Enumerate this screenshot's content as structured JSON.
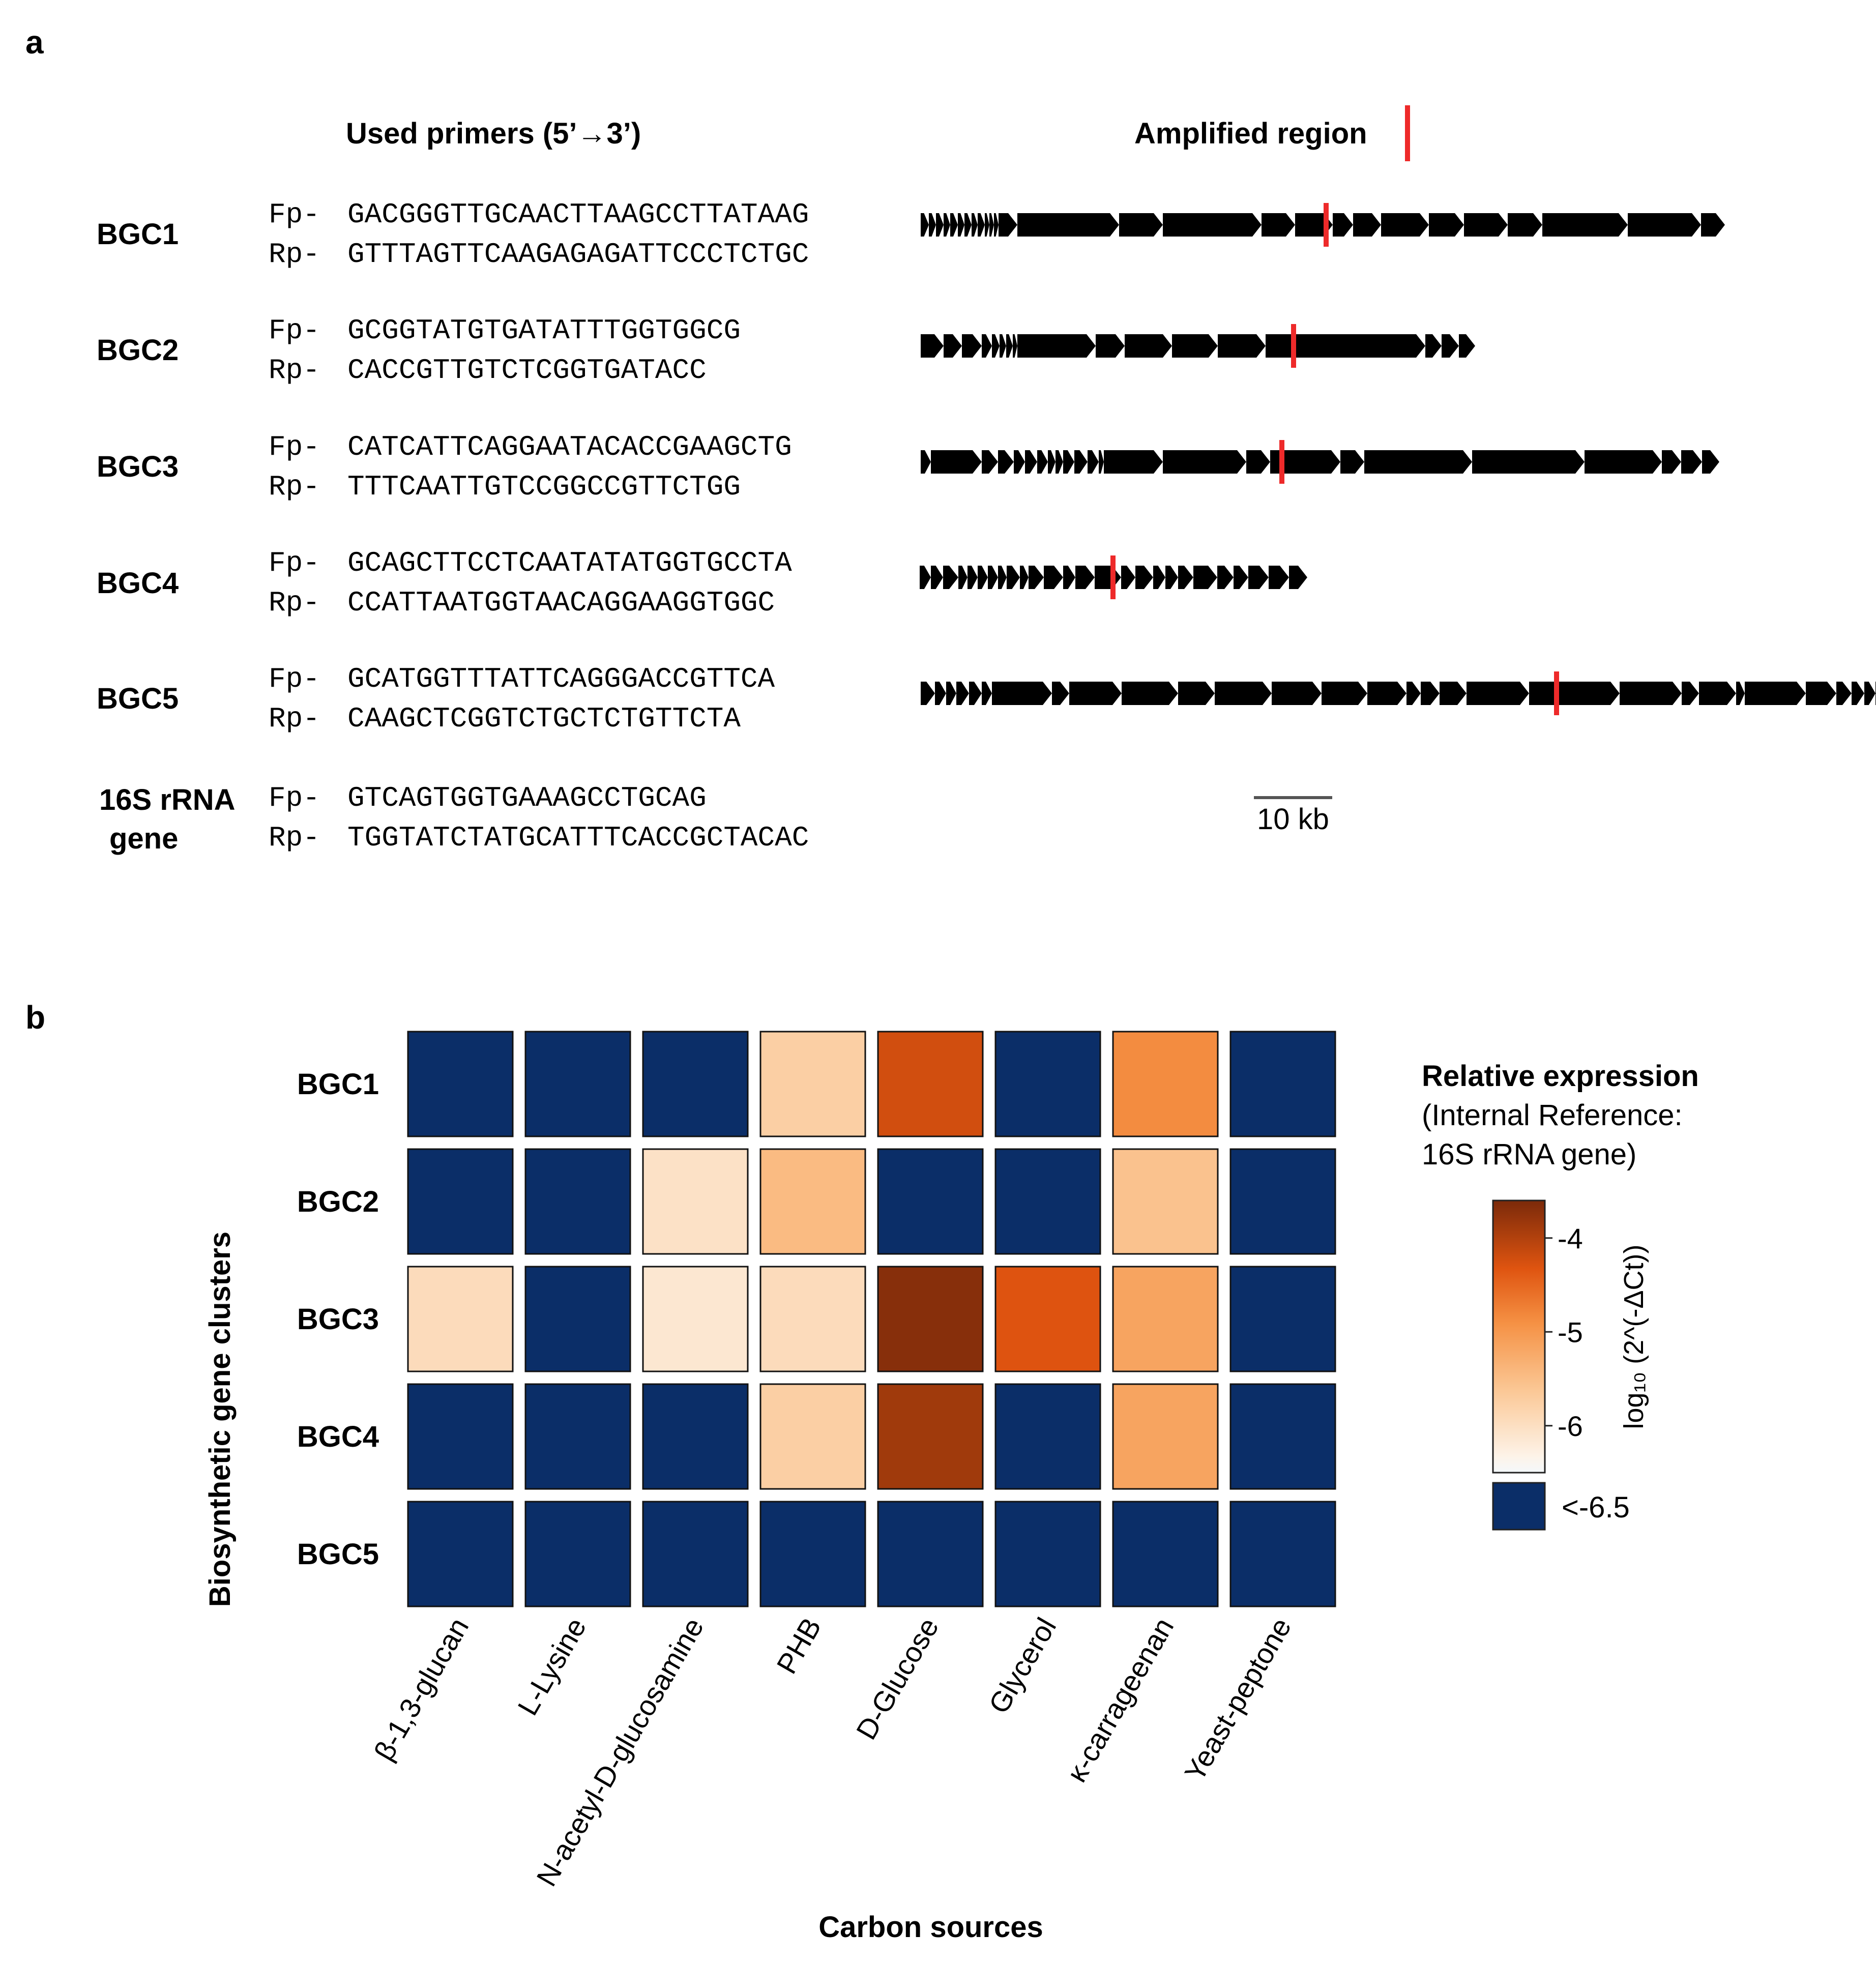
{
  "panel_a": {
    "label": "a",
    "primers_header": "Used primers (5’→3’)",
    "amplified_header": "Amplified region",
    "rows": [
      {
        "name": "BGC1",
        "fp_prefix": "Fp-",
        "fp": "GACGGGTTGCAACTTAAGCCTTATAAG",
        "rp_prefix": "Rp-",
        "rp": "GTTTAGTTCAAGAGAGATTCCCTCTGC"
      },
      {
        "name": "BGC2",
        "fp_prefix": "Fp-",
        "fp": "GCGGTATGTGATATTTGGTGGCG",
        "rp_prefix": "Rp-",
        "rp": "CACCGTTGTCTCGGTGATACC"
      },
      {
        "name": "BGC3",
        "fp_prefix": "Fp-",
        "fp": "CATCATTCAGGAATACACCGAAGCTG",
        "rp_prefix": "Rp-",
        "rp": "TTTCAATTGTCCGGCCGTTCTGG"
      },
      {
        "name": "BGC4",
        "fp_prefix": "Fp-",
        "fp": "GCAGCTTCCTCAATATATGGTGCCTA",
        "rp_prefix": "Rp-",
        "rp": "CCATTAATGGTAACAGGAAGGTGGC"
      },
      {
        "name": "BGC5",
        "fp_prefix": "Fp-",
        "fp": "GCATGGTTTATTCAGGGACCGTTCA",
        "rp_prefix": "Rp-",
        "rp": "CAAGCTCGGTCTGCTCTGTTCTA"
      },
      {
        "name_line1": "16S rRNA",
        "name_line2": "gene",
        "fp_prefix": "Fp-",
        "fp": "GTCAGTGGTGAAAGCCTGCAG",
        "rp_prefix": "Rp-",
        "rp": "TGGTATCTATGCATTTCACCGCTACAC"
      }
    ],
    "scale_bar_label": "10 kb",
    "colors": {
      "gene_arrow": "#000000",
      "amplified_marker": "#ee2a2a"
    }
  },
  "chart_data": {
    "type": "heatmap",
    "panel_label": "b",
    "xlabel": "Carbon sources",
    "ylabel": "Biosynthetic gene clusters",
    "rows": [
      "BGC1",
      "BGC2",
      "BGC3",
      "BGC4",
      "BGC5"
    ],
    "columns": [
      "β-1,3-glucan",
      "L-Lysine",
      "N-acetyl-D-glucosamine",
      "PHB",
      "D-Glucose",
      "Glycerol",
      "κ-carrageenan",
      "Yeast-peptone"
    ],
    "values": [
      [
        null,
        null,
        null,
        -5.9,
        -4.3,
        null,
        -5.0,
        null
      ],
      [
        null,
        null,
        -6.2,
        -5.6,
        null,
        null,
        -5.7,
        null
      ],
      [
        -6.1,
        null,
        -6.3,
        -6.1,
        -3.7,
        -4.4,
        -5.3,
        null
      ],
      [
        null,
        null,
        null,
        -5.9,
        -3.9,
        null,
        -5.3,
        null
      ],
      [
        null,
        null,
        null,
        null,
        null,
        null,
        null,
        null
      ]
    ],
    "below_threshold_label": "<-6.5",
    "color_scale": {
      "min": -6.5,
      "max": -3.6,
      "ticks": [
        -4,
        -5,
        -6
      ],
      "low_color": "#fcfcfa",
      "high_color": "#7b2a0a",
      "below_color": "#0b2e68"
    },
    "legend": {
      "title": "Relative expression",
      "subtitle_line1": "(Internal Reference:",
      "subtitle_line2": "16S rRNA gene)",
      "axis_label": "log₁₀ (2^(-ΔCt))"
    }
  }
}
